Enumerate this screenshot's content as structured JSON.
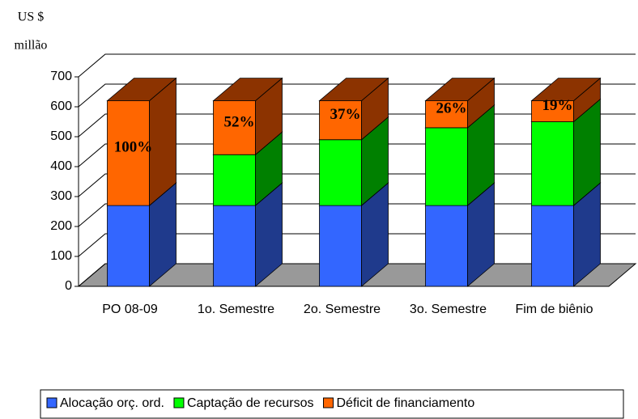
{
  "chart_data": {
    "type": "bar3d_stacked",
    "ylabel_lines": [
      "US $",
      "millão"
    ],
    "categories": [
      "PO 08-09",
      "1o. Semestre",
      "2o. Semestre",
      "3o. Semestre",
      "Fim de biênio"
    ],
    "series": [
      {
        "name": "Alocação orç. ord.",
        "color": "#3366ff",
        "side_color": "#1f3a8c",
        "values": [
          270,
          270,
          270,
          270,
          270
        ]
      },
      {
        "name": "Captação de recursos",
        "color": "#00ff00",
        "side_color": "#008000",
        "values": [
          0,
          170,
          220,
          260,
          280
        ]
      },
      {
        "name": "Déficit de financiamento",
        "color": "#ff6600",
        "side_color": "#8c3300",
        "values": [
          350,
          180,
          130,
          90,
          70
        ]
      }
    ],
    "annotations": [
      "100%",
      "52%",
      "37%",
      "26%",
      "19%"
    ],
    "ylim": [
      0,
      700
    ],
    "yticks": [
      0,
      100,
      200,
      300,
      400,
      500,
      600,
      700
    ],
    "grid": true,
    "legend": "bottom"
  }
}
